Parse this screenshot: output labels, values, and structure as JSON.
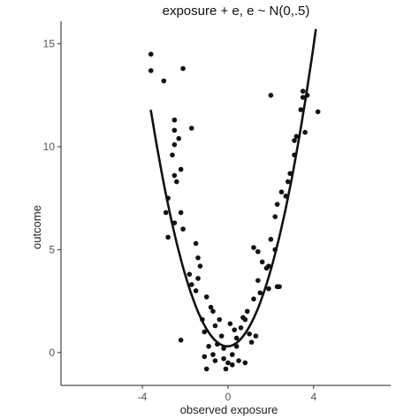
{
  "chart_data": {
    "type": "scatter",
    "title": "exposure + e, e ~ N(0,.5)",
    "xlabel": "observed exposure",
    "ylabel": "outcome",
    "xlim": [
      -7.8,
      7.6
    ],
    "ylim": [
      -1.6,
      16.1
    ],
    "x_ticks": [
      -4,
      0,
      4
    ],
    "x_tick_labels": [
      "-4",
      "0",
      "4"
    ],
    "y_ticks": [
      0,
      5,
      10,
      15
    ],
    "y_tick_labels": [
      "0",
      "5",
      "10",
      "15"
    ],
    "grid": false,
    "legend": "none",
    "fit_line": {
      "shape": "quadratic",
      "x_range": [
        -3.6,
        4.1
      ],
      "a": 0.9,
      "b": 0.06,
      "c": 0.3
    },
    "series": [
      {
        "points": [
          [
            -3.6,
            14.5
          ],
          [
            -3.6,
            13.7
          ],
          [
            -3.0,
            13.2
          ],
          [
            -2.1,
            13.8
          ],
          [
            -1.7,
            10.9
          ],
          [
            -2.5,
            11.3
          ],
          [
            -2.5,
            10.8
          ],
          [
            -2.3,
            10.4
          ],
          [
            -2.5,
            10.1
          ],
          [
            -2.6,
            9.6
          ],
          [
            -2.2,
            8.9
          ],
          [
            -2.5,
            8.6
          ],
          [
            -2.4,
            8.3
          ],
          [
            -2.8,
            7.5
          ],
          [
            -2.9,
            6.8
          ],
          [
            -2.2,
            6.8
          ],
          [
            -2.5,
            6.3
          ],
          [
            -2.1,
            6.0
          ],
          [
            -2.8,
            5.6
          ],
          [
            -1.5,
            5.3
          ],
          [
            -1.4,
            4.6
          ],
          [
            -1.3,
            4.2
          ],
          [
            -1.8,
            3.8
          ],
          [
            -1.4,
            3.6
          ],
          [
            -1.7,
            3.3
          ],
          [
            -1.5,
            3.0
          ],
          [
            -1.0,
            2.7
          ],
          [
            -0.8,
            2.2
          ],
          [
            -0.7,
            2.0
          ],
          [
            -1.2,
            1.6
          ],
          [
            -0.6,
            1.3
          ],
          [
            -1.1,
            1.0
          ],
          [
            -2.2,
            0.6
          ],
          [
            -0.9,
            0.3
          ],
          [
            -0.5,
            0.4
          ],
          [
            -0.3,
            0.8
          ],
          [
            -0.2,
            0.2
          ],
          [
            -1.1,
            -0.2
          ],
          [
            -0.7,
            -0.1
          ],
          [
            -0.6,
            -0.4
          ],
          [
            -0.2,
            -0.3
          ],
          [
            0.2,
            -0.1
          ],
          [
            0.0,
            -0.5
          ],
          [
            -0.1,
            -0.8
          ],
          [
            -1.0,
            -0.8
          ],
          [
            0.2,
            -0.6
          ],
          [
            0.4,
            0.3
          ],
          [
            0.5,
            -0.4
          ],
          [
            0.8,
            -0.5
          ],
          [
            0.4,
            0.7
          ],
          [
            0.3,
            1.1
          ],
          [
            0.1,
            1.4
          ],
          [
            0.6,
            1.2
          ],
          [
            0.8,
            1.6
          ],
          [
            1.0,
            0.9
          ],
          [
            1.1,
            0.5
          ],
          [
            1.3,
            0.8
          ],
          [
            0.9,
            2.0
          ],
          [
            1.2,
            2.6
          ],
          [
            1.5,
            2.9
          ],
          [
            1.9,
            3.1
          ],
          [
            1.4,
            3.5
          ],
          [
            1.8,
            4.1
          ],
          [
            1.6,
            4.4
          ],
          [
            1.2,
            5.1
          ],
          [
            1.4,
            4.9
          ],
          [
            2.2,
            5.0
          ],
          [
            1.9,
            4.2
          ],
          [
            2.0,
            5.5
          ],
          [
            2.2,
            6.6
          ],
          [
            2.3,
            7.2
          ],
          [
            2.5,
            7.8
          ],
          [
            2.7,
            7.6
          ],
          [
            2.8,
            8.3
          ],
          [
            2.9,
            8.7
          ],
          [
            3.1,
            9.6
          ],
          [
            3.1,
            10.3
          ],
          [
            3.2,
            10.5
          ],
          [
            3.4,
            11.8
          ],
          [
            3.5,
            12.4
          ],
          [
            3.7,
            12.5
          ],
          [
            3.5,
            12.7
          ],
          [
            3.6,
            10.7
          ],
          [
            4.2,
            11.7
          ],
          [
            2.0,
            12.5
          ],
          [
            2.3,
            3.2
          ],
          [
            2.4,
            3.2
          ],
          [
            -0.4,
            1.6
          ],
          [
            0.7,
            1.7
          ]
        ]
      }
    ]
  }
}
